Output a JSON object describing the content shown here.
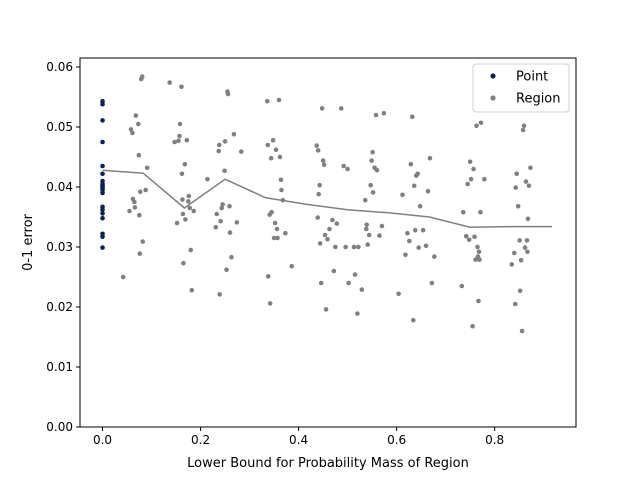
{
  "chart_data": {
    "type": "scatter",
    "title": "",
    "xlabel": "Lower Bound for Probability Mass of Region",
    "ylabel": "0-1 error",
    "xlim": [
      -0.046,
      0.966
    ],
    "ylim": [
      0,
      0.0615
    ],
    "xticks": [
      0.0,
      0.2,
      0.4,
      0.6,
      0.8
    ],
    "xtick_labels": [
      "0.0",
      "0.2",
      "0.4",
      "0.6",
      "0.8"
    ],
    "yticks": [
      0.0,
      0.01,
      0.02,
      0.03,
      0.04,
      0.05,
      0.06
    ],
    "ytick_labels": [
      "0.00",
      "0.01",
      "0.02",
      "0.03",
      "0.04",
      "0.05",
      "0.06"
    ],
    "grid": false,
    "legend_position": "top-right",
    "series": [
      {
        "name": "Point",
        "color": "#0b2350",
        "points": [
          [
            0,
            0.0543
          ],
          [
            0,
            0.0538
          ],
          [
            0,
            0.0511
          ],
          [
            0,
            0.0475
          ],
          [
            0,
            0.0435
          ],
          [
            0,
            0.0422
          ],
          [
            0,
            0.041
          ],
          [
            0,
            0.0405
          ],
          [
            0,
            0.0402
          ],
          [
            0,
            0.04
          ],
          [
            0,
            0.0398
          ],
          [
            0,
            0.0395
          ],
          [
            0,
            0.039
          ],
          [
            0,
            0.0367
          ],
          [
            0,
            0.0362
          ],
          [
            0,
            0.0356
          ],
          [
            0,
            0.0348
          ],
          [
            0,
            0.0322
          ],
          [
            0,
            0.0317
          ],
          [
            0,
            0.0299
          ]
        ]
      },
      {
        "name": "Region",
        "color": "#808080",
        "points": [
          [
            0.042,
            0.025
          ],
          [
            0.055,
            0.036
          ],
          [
            0.058,
            0.0496
          ],
          [
            0.061,
            0.049
          ],
          [
            0.062,
            0.038
          ],
          [
            0.065,
            0.0375
          ],
          [
            0.066,
            0.0366
          ],
          [
            0.068,
            0.0519
          ],
          [
            0.073,
            0.0505
          ],
          [
            0.074,
            0.0453
          ],
          [
            0.075,
            0.0353
          ],
          [
            0.076,
            0.0289
          ],
          [
            0.077,
            0.0392
          ],
          [
            0.079,
            0.058
          ],
          [
            0.081,
            0.0584
          ],
          [
            0.082,
            0.0309
          ],
          [
            0.088,
            0.0395
          ],
          [
            0.091,
            0.0432
          ],
          [
            0.137,
            0.0574
          ],
          [
            0.147,
            0.0475
          ],
          [
            0.152,
            0.034
          ],
          [
            0.155,
            0.0477
          ],
          [
            0.157,
            0.0485
          ],
          [
            0.158,
            0.0505
          ],
          [
            0.161,
            0.0567
          ],
          [
            0.162,
            0.0422
          ],
          [
            0.163,
            0.0379
          ],
          [
            0.164,
            0.0355
          ],
          [
            0.165,
            0.0273
          ],
          [
            0.168,
            0.0438
          ],
          [
            0.169,
            0.0346
          ],
          [
            0.172,
            0.0478
          ],
          [
            0.175,
            0.0376
          ],
          [
            0.176,
            0.0385
          ],
          [
            0.178,
            0.0365
          ],
          [
            0.18,
            0.0295
          ],
          [
            0.182,
            0.0228
          ],
          [
            0.186,
            0.036
          ],
          [
            0.214,
            0.0413
          ],
          [
            0.231,
            0.0333
          ],
          [
            0.233,
            0.0355
          ],
          [
            0.237,
            0.046
          ],
          [
            0.238,
            0.047
          ],
          [
            0.239,
            0.0221
          ],
          [
            0.241,
            0.0343
          ],
          [
            0.243,
            0.0365
          ],
          [
            0.245,
            0.0371
          ],
          [
            0.249,
            0.0427
          ],
          [
            0.25,
            0.0476
          ],
          [
            0.253,
            0.0262
          ],
          [
            0.255,
            0.0559
          ],
          [
            0.256,
            0.0555
          ],
          [
            0.259,
            0.0368
          ],
          [
            0.26,
            0.0324
          ],
          [
            0.263,
            0.0283
          ],
          [
            0.268,
            0.0488
          ],
          [
            0.274,
            0.0341
          ],
          [
            0.283,
            0.0459
          ],
          [
            0.336,
            0.0543
          ],
          [
            0.337,
            0.047
          ],
          [
            0.338,
            0.0251
          ],
          [
            0.341,
            0.0354
          ],
          [
            0.342,
            0.0206
          ],
          [
            0.344,
            0.0448
          ],
          [
            0.345,
            0.0358
          ],
          [
            0.348,
            0.0478
          ],
          [
            0.35,
            0.0315
          ],
          [
            0.352,
            0.034
          ],
          [
            0.354,
            0.0462
          ],
          [
            0.356,
            0.033
          ],
          [
            0.357,
            0.0315
          ],
          [
            0.36,
            0.0545
          ],
          [
            0.362,
            0.045
          ],
          [
            0.364,
            0.0412
          ],
          [
            0.365,
            0.0395
          ],
          [
            0.368,
            0.0378
          ],
          [
            0.373,
            0.0323
          ],
          [
            0.386,
            0.0268
          ],
          [
            0.437,
            0.0469
          ],
          [
            0.439,
            0.0349
          ],
          [
            0.44,
            0.0461
          ],
          [
            0.441,
            0.0388
          ],
          [
            0.443,
            0.0403
          ],
          [
            0.444,
            0.0306
          ],
          [
            0.446,
            0.024
          ],
          [
            0.448,
            0.0531
          ],
          [
            0.45,
            0.0444
          ],
          [
            0.452,
            0.0437
          ],
          [
            0.454,
            0.032
          ],
          [
            0.456,
            0.0196
          ],
          [
            0.459,
            0.0313
          ],
          [
            0.463,
            0.033
          ],
          [
            0.469,
            0.0345
          ],
          [
            0.472,
            0.026
          ],
          [
            0.475,
            0.03
          ],
          [
            0.478,
            0.0339
          ],
          [
            0.487,
            0.0531
          ],
          [
            0.492,
            0.0435
          ],
          [
            0.496,
            0.03
          ],
          [
            0.5,
            0.043
          ],
          [
            0.502,
            0.024
          ],
          [
            0.513,
            0.03
          ],
          [
            0.515,
            0.0254
          ],
          [
            0.52,
            0.0189
          ],
          [
            0.522,
            0.03
          ],
          [
            0.529,
            0.0229
          ],
          [
            0.536,
            0.0378
          ],
          [
            0.538,
            0.033
          ],
          [
            0.539,
            0.0337
          ],
          [
            0.541,
            0.0304
          ],
          [
            0.544,
            0.032
          ],
          [
            0.547,
            0.0403
          ],
          [
            0.549,
            0.0444
          ],
          [
            0.551,
            0.0458
          ],
          [
            0.552,
            0.0391
          ],
          [
            0.555,
            0.0432
          ],
          [
            0.558,
            0.052
          ],
          [
            0.56,
            0.0428
          ],
          [
            0.565,
            0.0319
          ],
          [
            0.57,
            0.0335
          ],
          [
            0.574,
            0.0523
          ],
          [
            0.604,
            0.0222
          ],
          [
            0.612,
            0.0387
          ],
          [
            0.618,
            0.0287
          ],
          [
            0.622,
            0.0323
          ],
          [
            0.626,
            0.031
          ],
          [
            0.629,
            0.0438
          ],
          [
            0.632,
            0.0517
          ],
          [
            0.634,
            0.0178
          ],
          [
            0.636,
            0.0402
          ],
          [
            0.638,
            0.0328
          ],
          [
            0.64,
            0.0419
          ],
          [
            0.643,
            0.0422
          ],
          [
            0.645,
            0.0299
          ],
          [
            0.648,
            0.0368
          ],
          [
            0.654,
            0.0328
          ],
          [
            0.66,
            0.0302
          ],
          [
            0.664,
            0.0393
          ],
          [
            0.668,
            0.0448
          ],
          [
            0.672,
            0.024
          ],
          [
            0.677,
            0.0284
          ],
          [
            0.733,
            0.0235
          ],
          [
            0.736,
            0.0358
          ],
          [
            0.742,
            0.0318
          ],
          [
            0.745,
            0.0405
          ],
          [
            0.748,
            0.0312
          ],
          [
            0.75,
            0.0442
          ],
          [
            0.752,
            0.0413
          ],
          [
            0.755,
            0.0168
          ],
          [
            0.757,
            0.043
          ],
          [
            0.759,
            0.0317
          ],
          [
            0.761,
            0.0279
          ],
          [
            0.763,
            0.0502
          ],
          [
            0.765,
            0.03
          ],
          [
            0.766,
            0.0284
          ],
          [
            0.767,
            0.021
          ],
          [
            0.768,
            0.0292
          ],
          [
            0.769,
            0.0279
          ],
          [
            0.771,
            0.0358
          ],
          [
            0.772,
            0.0507
          ],
          [
            0.779,
            0.0413
          ],
          [
            0.835,
            0.0271
          ],
          [
            0.84,
            0.029
          ],
          [
            0.842,
            0.0205
          ],
          [
            0.843,
            0.0399
          ],
          [
            0.845,
            0.0422
          ],
          [
            0.848,
            0.0368
          ],
          [
            0.851,
            0.0311
          ],
          [
            0.852,
            0.0227
          ],
          [
            0.854,
            0.0278
          ],
          [
            0.856,
            0.016
          ],
          [
            0.858,
            0.0495
          ],
          [
            0.86,
            0.0502
          ],
          [
            0.862,
            0.0299
          ],
          [
            0.864,
            0.0409
          ],
          [
            0.866,
            0.0311
          ],
          [
            0.867,
            0.0292
          ],
          [
            0.868,
            0.0347
          ],
          [
            0.87,
            0.0402
          ],
          [
            0.873,
            0.0432
          ]
        ],
        "line": [
          [
            0.0,
            0.0428
          ],
          [
            0.083,
            0.0423
          ],
          [
            0.167,
            0.0365
          ],
          [
            0.25,
            0.0413
          ],
          [
            0.333,
            0.0382
          ],
          [
            0.417,
            0.0371
          ],
          [
            0.5,
            0.0362
          ],
          [
            0.583,
            0.0357
          ],
          [
            0.667,
            0.035
          ],
          [
            0.75,
            0.0333
          ],
          [
            0.833,
            0.0334
          ],
          [
            0.917,
            0.0334
          ]
        ]
      }
    ]
  }
}
